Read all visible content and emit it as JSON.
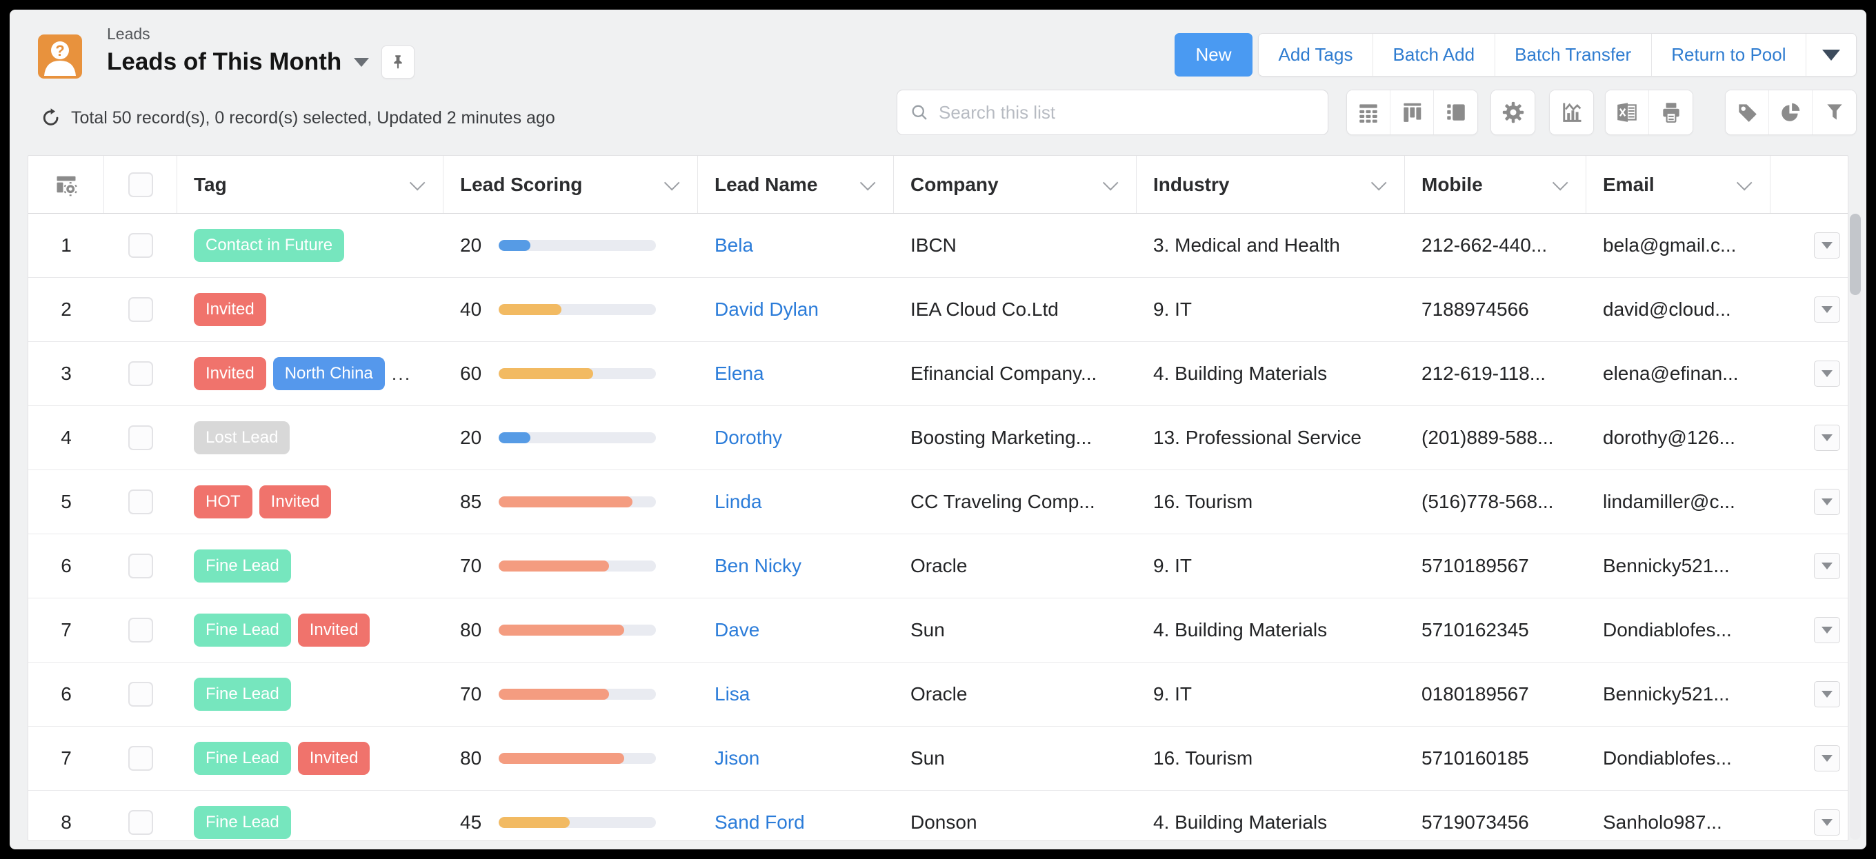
{
  "window": {
    "module": "Leads",
    "view_title": "Leads of This Month",
    "meta": "Total 50 record(s), 0 record(s) selected, Updated 2 minutes ago"
  },
  "actions": {
    "new": "New",
    "group": [
      "Add Tags",
      "Batch Add",
      "Batch Transfer",
      "Return to Pool"
    ]
  },
  "toolbar": {
    "search_placeholder": "Search this list",
    "icons": [
      "table-view",
      "kanban-view",
      "split-view",
      "settings",
      "chart",
      "export-excel",
      "print",
      "tags",
      "pie-chart",
      "filter"
    ]
  },
  "table": {
    "columns": [
      "Tag",
      "Lead Scoring",
      "Lead Name",
      "Company",
      "Industry",
      "Mobile",
      "Email"
    ],
    "rows": [
      {
        "num": "1",
        "tags": [
          {
            "label": "Contact in Future",
            "color": "green"
          }
        ],
        "more": "",
        "score": 20,
        "bar": "blue",
        "name": "Bela",
        "company": "IBCN",
        "industry": "3. Medical and Health",
        "mobile": "212-662-440...",
        "email": "bela@gmail.c..."
      },
      {
        "num": "2",
        "tags": [
          {
            "label": "Invited",
            "color": "red"
          }
        ],
        "more": "",
        "score": 40,
        "bar": "orange",
        "name": "David Dylan",
        "company": "IEA Cloud Co.Ltd",
        "industry": "9. IT",
        "mobile": "7188974566",
        "email": "david@cloud..."
      },
      {
        "num": "3",
        "tags": [
          {
            "label": "Invited",
            "color": "red"
          },
          {
            "label": "North China",
            "color": "blue"
          }
        ],
        "more": "...",
        "score": 60,
        "bar": "orange",
        "name": "Elena",
        "company": "Efinancial Company...",
        "industry": "4. Building Materials",
        "mobile": "212-619-118...",
        "email": "elena@efinan..."
      },
      {
        "num": "4",
        "tags": [
          {
            "label": "Lost Lead",
            "color": "gray"
          }
        ],
        "more": "",
        "score": 20,
        "bar": "blue",
        "name": "Dorothy",
        "company": "Boosting Marketing...",
        "industry": "13. Professional Service",
        "mobile": "(201)889-588...",
        "email": "dorothy@126..."
      },
      {
        "num": "5",
        "tags": [
          {
            "label": "HOT",
            "color": "red"
          },
          {
            "label": "Invited",
            "color": "red"
          }
        ],
        "more": "",
        "score": 85,
        "bar": "salmon",
        "name": "Linda",
        "company": "CC Traveling Comp...",
        "industry": "16. Tourism",
        "mobile": "(516)778-568...",
        "email": "lindamiller@c..."
      },
      {
        "num": "6",
        "tags": [
          {
            "label": "Fine Lead",
            "color": "green"
          }
        ],
        "more": "",
        "score": 70,
        "bar": "salmon",
        "name": "Ben Nicky",
        "company": "Oracle",
        "industry": "9. IT",
        "mobile": "5710189567",
        "email": "Bennicky521..."
      },
      {
        "num": "7",
        "tags": [
          {
            "label": "Fine Lead",
            "color": "green"
          },
          {
            "label": "Invited",
            "color": "red"
          }
        ],
        "more": "",
        "score": 80,
        "bar": "salmon",
        "name": "Dave",
        "company": "Sun",
        "industry": "4. Building Materials",
        "mobile": "5710162345",
        "email": "Dondiablofes..."
      },
      {
        "num": "6",
        "tags": [
          {
            "label": "Fine Lead",
            "color": "green"
          }
        ],
        "more": "",
        "score": 70,
        "bar": "salmon",
        "name": "Lisa",
        "company": "Oracle",
        "industry": "9. IT",
        "mobile": "0180189567",
        "email": "Bennicky521..."
      },
      {
        "num": "7",
        "tags": [
          {
            "label": "Fine Lead",
            "color": "green"
          },
          {
            "label": "Invited",
            "color": "red"
          }
        ],
        "more": "",
        "score": 80,
        "bar": "salmon",
        "name": "Jison",
        "company": "Sun",
        "industry": "16. Tourism",
        "mobile": "5710160185",
        "email": "Dondiablofes..."
      },
      {
        "num": "8",
        "tags": [
          {
            "label": "Fine Lead",
            "color": "green"
          }
        ],
        "more": "",
        "score": 45,
        "bar": "orange",
        "name": "Sand Ford",
        "company": "Donson",
        "industry": "4. Building Materials",
        "mobile": "5719073456",
        "email": "Sanholo987..."
      }
    ]
  },
  "palette": {
    "accent_blue": "#4A9AF2",
    "link_blue": "#2B7CD9",
    "tag_green": "#76E6BE",
    "tag_red": "#F0736C",
    "tag_blue": "#5598EC",
    "tag_gray": "#D8D8D8",
    "bar_blue": "#569BE5",
    "bar_orange": "#F2BA62",
    "bar_salmon": "#F49C80",
    "bar_track": "#E9EBF1"
  }
}
